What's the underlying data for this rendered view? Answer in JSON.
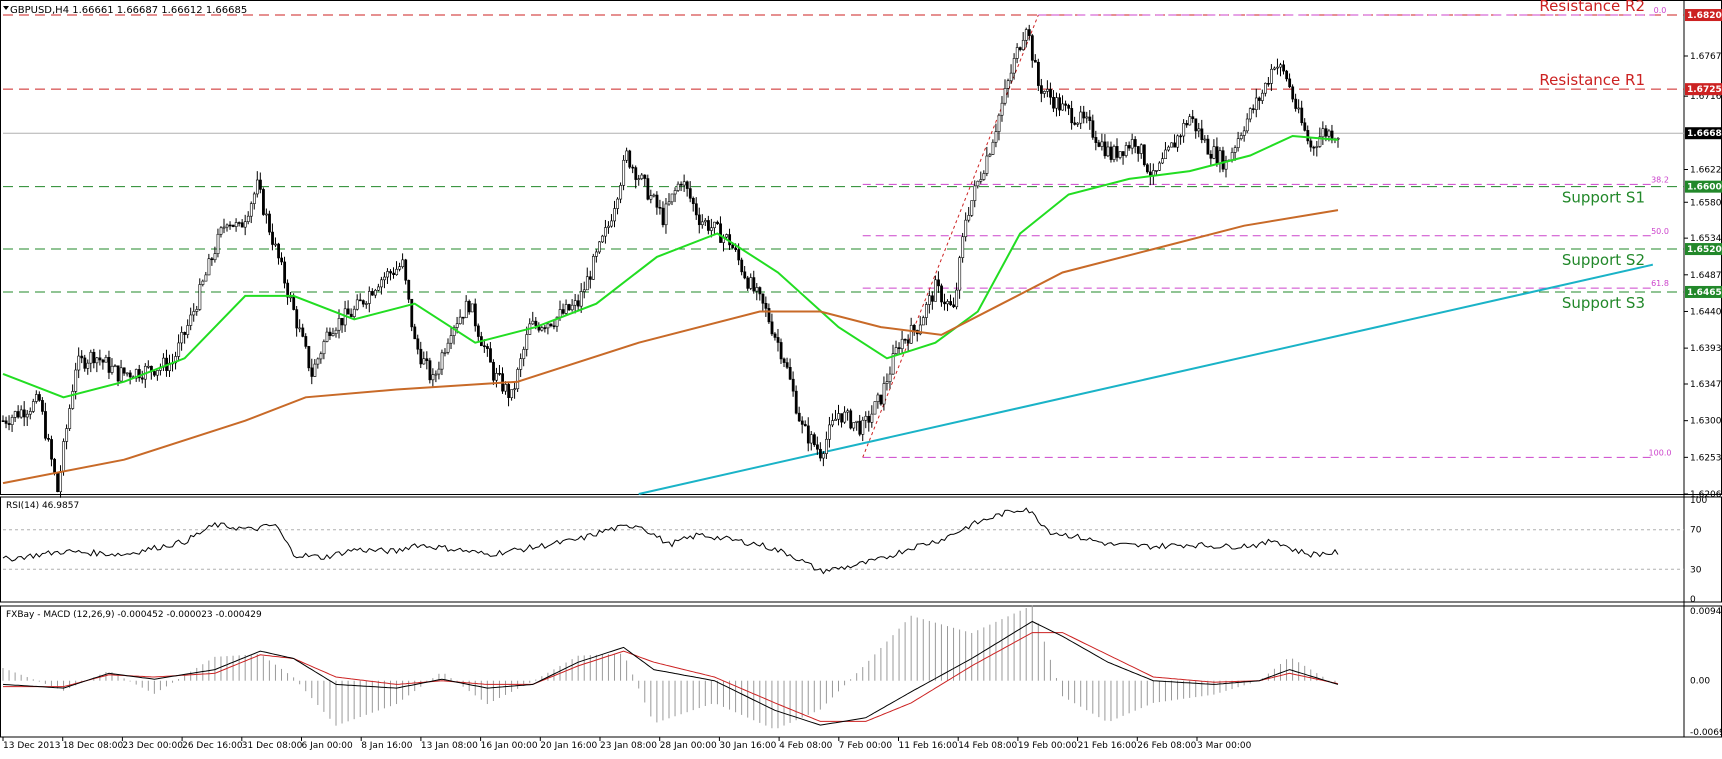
{
  "chart_data": {
    "type": "candlestick",
    "symbol_header": "GBPUSD,H4  1.66661 1.66687 1.66612 1.66685",
    "current_price": 1.66685,
    "price_axis": {
      "range": [
        1.6206,
        1.6838
      ],
      "ticks": [
        "1.67675",
        "1.67160",
        "1.66220",
        "1.65800",
        "1.65340",
        "1.64870",
        "1.64400",
        "1.63930",
        "1.63470",
        "1.63000",
        "1.62530",
        "1.62060"
      ],
      "tagged_labels": [
        "1.68200",
        "1.67250",
        "1.66685",
        "1.66000",
        "1.65200",
        "1.64650"
      ]
    },
    "levels": [
      {
        "name": "Resistance R2",
        "price": 1.682,
        "label": "1.68200",
        "color": "#cc2222"
      },
      {
        "name": "Resistance R1",
        "price": 1.6725,
        "label": "1.67250",
        "color": "#cc2222"
      },
      {
        "name": "Support S1",
        "price": 1.66,
        "label": "1.66000",
        "color": "#22882a"
      },
      {
        "name": "Support S2",
        "price": 1.652,
        "label": "1.65200",
        "color": "#22882a"
      },
      {
        "name": "Support S3",
        "price": 1.6465,
        "label": "1.64650",
        "color": "#22882a"
      }
    ],
    "fibonacci": {
      "color": "#cc44cc",
      "high": 1.682,
      "low": 1.6253,
      "levels": [
        {
          "label": "0.0",
          "price": 1.682
        },
        {
          "label": "38.2",
          "price": 1.6603
        },
        {
          "label": "50.0",
          "price": 1.6537
        },
        {
          "label": "61.8",
          "price": 1.647
        },
        {
          "label": "100.0",
          "price": 1.6253
        }
      ]
    },
    "x_labels": [
      "13 Dec 2013",
      "18 Dec 08:00",
      "23 Dec 00:00",
      "26 Dec 16:00",
      "31 Dec 08:00",
      "6 Jan 00:00",
      "8 Jan 16:00",
      "13 Jan 08:00",
      "16 Jan 00:00",
      "20 Jan 16:00",
      "23 Jan 08:00",
      "28 Jan 00:00",
      "30 Jan 16:00",
      "4 Feb 08:00",
      "7 Feb 00:00",
      "11 Feb 16:00",
      "14 Feb 08:00",
      "19 Feb 00:00",
      "21 Feb 16:00",
      "26 Feb 08:00",
      "3 Mar 00:00"
    ],
    "price_path": [
      [
        0,
        1.63
      ],
      [
        12,
        1.6325
      ],
      [
        18,
        1.621
      ],
      [
        24,
        1.637
      ],
      [
        30,
        1.6385
      ],
      [
        38,
        1.636
      ],
      [
        48,
        1.6365
      ],
      [
        56,
        1.6375
      ],
      [
        62,
        1.643
      ],
      [
        70,
        1.652
      ],
      [
        74,
        1.656
      ],
      [
        78,
        1.6545
      ],
      [
        84,
        1.66
      ],
      [
        90,
        1.652
      ],
      [
        96,
        1.644
      ],
      [
        102,
        1.636
      ],
      [
        108,
        1.642
      ],
      [
        116,
        1.644
      ],
      [
        124,
        1.648
      ],
      [
        132,
        1.65
      ],
      [
        136,
        1.64
      ],
      [
        142,
        1.635
      ],
      [
        148,
        1.642
      ],
      [
        154,
        1.645
      ],
      [
        162,
        1.636
      ],
      [
        168,
        1.633
      ],
      [
        174,
        1.642
      ],
      [
        182,
        1.643
      ],
      [
        190,
        1.645
      ],
      [
        200,
        1.655
      ],
      [
        206,
        1.664
      ],
      [
        212,
        1.66
      ],
      [
        218,
        1.656
      ],
      [
        224,
        1.661
      ],
      [
        230,
        1.656
      ],
      [
        240,
        1.653
      ],
      [
        246,
        1.648
      ],
      [
        252,
        1.644
      ],
      [
        258,
        1.638
      ],
      [
        264,
        1.629
      ],
      [
        270,
        1.626
      ],
      [
        276,
        1.631
      ],
      [
        284,
        1.629
      ],
      [
        290,
        1.633
      ],
      [
        296,
        1.64
      ],
      [
        302,
        1.642
      ],
      [
        308,
        1.647
      ],
      [
        314,
        1.644
      ],
      [
        318,
        1.656
      ],
      [
        326,
        1.665
      ],
      [
        334,
        1.676
      ],
      [
        338,
        1.681
      ],
      [
        342,
        1.673
      ],
      [
        350,
        1.67
      ],
      [
        358,
        1.668
      ],
      [
        366,
        1.664
      ],
      [
        374,
        1.666
      ],
      [
        380,
        1.661
      ],
      [
        386,
        1.665
      ],
      [
        392,
        1.669
      ],
      [
        398,
        1.665
      ],
      [
        404,
        1.663
      ],
      [
        410,
        1.668
      ],
      [
        416,
        1.672
      ],
      [
        420,
        1.676
      ],
      [
        424,
        1.674
      ],
      [
        428,
        1.669
      ],
      [
        432,
        1.665
      ],
      [
        436,
        1.667
      ],
      [
        441,
        1.6668
      ]
    ],
    "moving_averages": [
      {
        "period": "fast",
        "color": "#22dd22",
        "points": [
          [
            0,
            1.636
          ],
          [
            20,
            1.633
          ],
          [
            40,
            1.635
          ],
          [
            60,
            1.638
          ],
          [
            80,
            1.646
          ],
          [
            96,
            1.646
          ],
          [
            116,
            1.643
          ],
          [
            136,
            1.645
          ],
          [
            156,
            1.64
          ],
          [
            176,
            1.642
          ],
          [
            196,
            1.645
          ],
          [
            216,
            1.651
          ],
          [
            236,
            1.654
          ],
          [
            256,
            1.649
          ],
          [
            276,
            1.642
          ],
          [
            292,
            1.638
          ],
          [
            308,
            1.64
          ],
          [
            322,
            1.644
          ],
          [
            336,
            1.654
          ],
          [
            352,
            1.659
          ],
          [
            372,
            1.661
          ],
          [
            392,
            1.662
          ],
          [
            412,
            1.664
          ],
          [
            426,
            1.6665
          ],
          [
            441,
            1.666
          ]
        ]
      },
      {
        "period": "slow",
        "color": "#c86a28",
        "points": [
          [
            0,
            1.622
          ],
          [
            40,
            1.625
          ],
          [
            80,
            1.63
          ],
          [
            100,
            1.633
          ],
          [
            130,
            1.634
          ],
          [
            170,
            1.635
          ],
          [
            210,
            1.64
          ],
          [
            250,
            1.644
          ],
          [
            270,
            1.644
          ],
          [
            290,
            1.642
          ],
          [
            310,
            1.641
          ],
          [
            330,
            1.645
          ],
          [
            350,
            1.649
          ],
          [
            380,
            1.652
          ],
          [
            410,
            1.655
          ],
          [
            441,
            1.657
          ]
        ]
      }
    ],
    "trendline": {
      "color": "#1ab3c7",
      "from": [
        210,
        1.6206
      ],
      "to": [
        545,
        1.65
      ]
    },
    "fib_projection_line": {
      "from": [
        284,
        1.6253
      ],
      "to": [
        342,
        1.682
      ]
    },
    "rsi": {
      "label": "RSI(14) 46.9857",
      "value": 46.9857,
      "range": [
        0,
        100
      ],
      "ticks": [
        "100",
        "70",
        "30",
        "0"
      ],
      "levels": [
        70,
        30
      ],
      "points": [
        [
          0,
          40
        ],
        [
          20,
          48
        ],
        [
          40,
          45
        ],
        [
          60,
          58
        ],
        [
          70,
          75
        ],
        [
          82,
          70
        ],
        [
          90,
          75
        ],
        [
          96,
          45
        ],
        [
          106,
          42
        ],
        [
          116,
          50
        ],
        [
          130,
          48
        ],
        [
          136,
          55
        ],
        [
          150,
          50
        ],
        [
          160,
          45
        ],
        [
          175,
          52
        ],
        [
          190,
          60
        ],
        [
          200,
          70
        ],
        [
          210,
          75
        ],
        [
          220,
          55
        ],
        [
          230,
          65
        ],
        [
          240,
          60
        ],
        [
          250,
          55
        ],
        [
          260,
          45
        ],
        [
          270,
          28
        ],
        [
          280,
          33
        ],
        [
          290,
          40
        ],
        [
          300,
          52
        ],
        [
          310,
          60
        ],
        [
          320,
          75
        ],
        [
          330,
          86
        ],
        [
          338,
          92
        ],
        [
          346,
          68
        ],
        [
          356,
          62
        ],
        [
          366,
          55
        ],
        [
          380,
          53
        ],
        [
          392,
          55
        ],
        [
          404,
          53
        ],
        [
          416,
          55
        ],
        [
          420,
          60
        ],
        [
          426,
          50
        ],
        [
          432,
          45
        ],
        [
          441,
          47
        ]
      ]
    },
    "macd": {
      "label": "FXBay - MACD (12,26,9) -0.000452 -0.000023 -0.000429",
      "range": [
        -0.006929,
        0.009418
      ],
      "ticks": [
        "0.009418",
        "0.00",
        "-0.006929"
      ],
      "main_color": "#000000",
      "signal_color": "#cc2222",
      "main": [
        [
          0,
          -0.0005
        ],
        [
          20,
          -0.001
        ],
        [
          35,
          0.001
        ],
        [
          50,
          0.0002
        ],
        [
          70,
          0.0015
        ],
        [
          85,
          0.004
        ],
        [
          96,
          0.003
        ],
        [
          110,
          -0.0005
        ],
        [
          130,
          -0.001
        ],
        [
          145,
          0.0002
        ],
        [
          160,
          -0.001
        ],
        [
          175,
          -0.0005
        ],
        [
          190,
          0.0025
        ],
        [
          205,
          0.0045
        ],
        [
          215,
          0.0015
        ],
        [
          235,
          0.0
        ],
        [
          255,
          -0.004
        ],
        [
          270,
          -0.006
        ],
        [
          285,
          -0.005
        ],
        [
          300,
          -0.0015
        ],
        [
          320,
          0.003
        ],
        [
          340,
          0.008
        ],
        [
          350,
          0.006
        ],
        [
          365,
          0.0025
        ],
        [
          380,
          0.0
        ],
        [
          400,
          -0.0005
        ],
        [
          415,
          0.0
        ],
        [
          425,
          0.0015
        ],
        [
          441,
          -0.0005
        ]
      ],
      "signal": [
        [
          0,
          -0.0008
        ],
        [
          20,
          -0.0008
        ],
        [
          35,
          0.0008
        ],
        [
          50,
          0.0005
        ],
        [
          70,
          0.001
        ],
        [
          85,
          0.0035
        ],
        [
          96,
          0.003
        ],
        [
          110,
          0.0005
        ],
        [
          130,
          -0.0005
        ],
        [
          145,
          0.0
        ],
        [
          160,
          -0.0005
        ],
        [
          175,
          -0.0005
        ],
        [
          190,
          0.002
        ],
        [
          205,
          0.004
        ],
        [
          215,
          0.0025
        ],
        [
          235,
          0.0005
        ],
        [
          255,
          -0.003
        ],
        [
          270,
          -0.0055
        ],
        [
          285,
          -0.0055
        ],
        [
          300,
          -0.003
        ],
        [
          320,
          0.002
        ],
        [
          340,
          0.0065
        ],
        [
          350,
          0.0065
        ],
        [
          365,
          0.0035
        ],
        [
          380,
          0.0005
        ],
        [
          400,
          -0.0002
        ],
        [
          415,
          0.0
        ],
        [
          425,
          0.001
        ],
        [
          441,
          -0.0004
        ]
      ]
    }
  }
}
